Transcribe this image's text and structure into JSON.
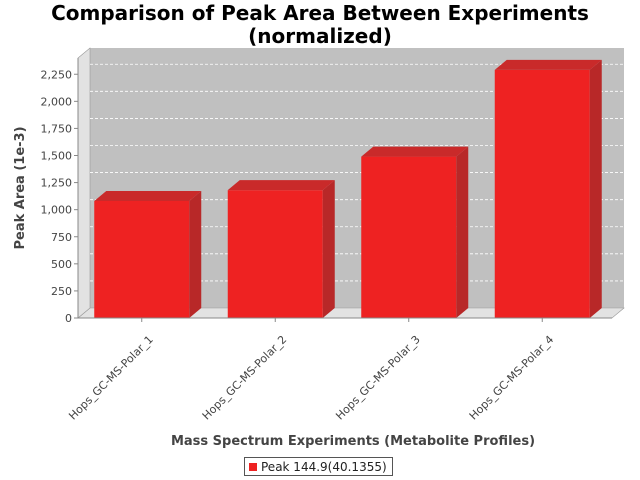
{
  "chart_data": {
    "type": "bar",
    "title": "Comparison of Peak Area Between Experiments (normalized)",
    "title_lines": [
      "Comparison of Peak Area Between Experiments",
      "(normalized)"
    ],
    "xlabel": "Mass Spectrum Experiments (Metabolite Profiles)",
    "ylabel": "Peak Area (1e-3)",
    "categories": [
      "Hops_GC-MS-Polar_1",
      "Hops_GC-MS-Polar_2",
      "Hops_GC-MS-Polar_3",
      "Hops_GC-MS-Polar_4"
    ],
    "series": [
      {
        "name": "Peak 144.9(40.1355)",
        "values": [
          1080,
          1180,
          1490,
          2290
        ]
      }
    ],
    "ylim": [
      0,
      2400
    ],
    "yticks": [
      0,
      250,
      500,
      750,
      1000,
      1250,
      1500,
      1750,
      2000,
      2250
    ],
    "ytick_labels": [
      "0",
      "250",
      "500",
      "750",
      "1,000",
      "1,250",
      "1,500",
      "1,750",
      "2,000",
      "2,250"
    ],
    "grid": true,
    "legend_position": "bottom",
    "colors": {
      "bar_front": "#ee2222",
      "bar_side": "#b82828",
      "bar_top": "#c92a2a",
      "plot_background": "#c0c0c0",
      "plot_wall": "#e2e2e2"
    }
  }
}
